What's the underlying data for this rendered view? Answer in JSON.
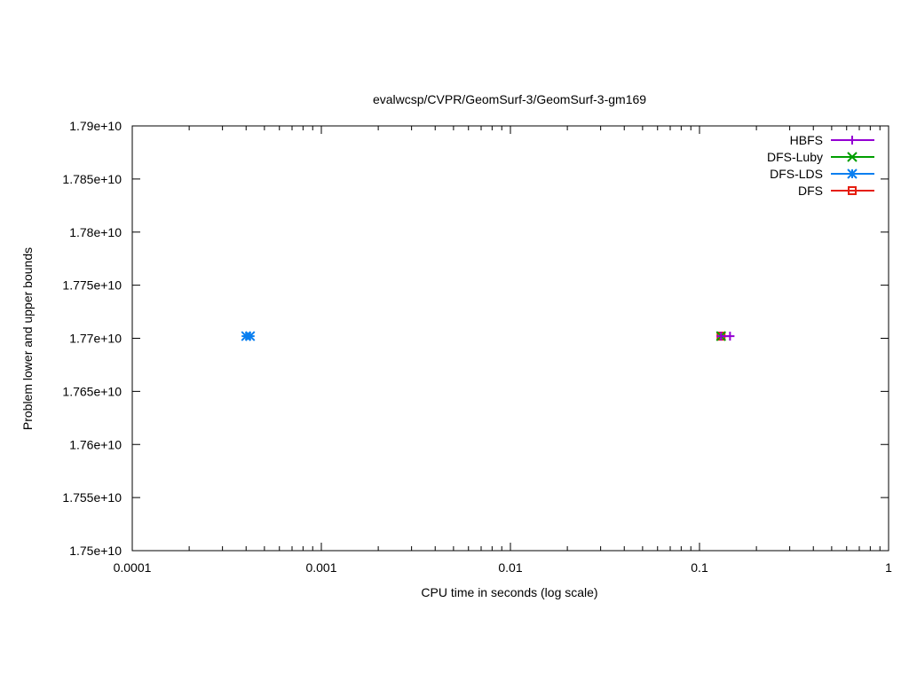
{
  "chart_data": {
    "type": "scatter",
    "title": "evalwcsp/CVPR/GeomSurf-3/GeomSurf-3-gm169",
    "xlabel": "CPU time in seconds (log scale)",
    "ylabel": "Problem lower and upper bounds",
    "x_scale": "log",
    "xlim": [
      0.0001,
      1
    ],
    "ylim": [
      17500000000,
      17900000000
    ],
    "x_ticks": [
      {
        "value": 0.0001,
        "label": "0.0001"
      },
      {
        "value": 0.001,
        "label": "0.001"
      },
      {
        "value": 0.01,
        "label": "0.01"
      },
      {
        "value": 0.1,
        "label": "0.1"
      },
      {
        "value": 1,
        "label": "1"
      }
    ],
    "y_ticks": [
      {
        "value": 17500000000,
        "label": "1.75e+10"
      },
      {
        "value": 17550000000,
        "label": "1.755e+10"
      },
      {
        "value": 17600000000,
        "label": "1.76e+10"
      },
      {
        "value": 17650000000,
        "label": "1.765e+10"
      },
      {
        "value": 17700000000,
        "label": "1.77e+10"
      },
      {
        "value": 17750000000,
        "label": "1.775e+10"
      },
      {
        "value": 17800000000,
        "label": "1.78e+10"
      },
      {
        "value": 17850000000,
        "label": "1.785e+10"
      },
      {
        "value": 17900000000,
        "label": "1.79e+10"
      }
    ],
    "grid": false,
    "legend_position": "top-right",
    "series": [
      {
        "name": "HBFS",
        "color": "#9400d3",
        "marker": "plus",
        "points": [
          {
            "x": 0.13,
            "y": 17702000000
          },
          {
            "x": 0.145,
            "y": 17702000000
          }
        ]
      },
      {
        "name": "DFS-Luby",
        "color": "#009e00",
        "marker": "cross",
        "points": [
          {
            "x": 0.13,
            "y": 17702000000
          }
        ]
      },
      {
        "name": "DFS-LDS",
        "color": "#0a7ff0",
        "marker": "star",
        "points": [
          {
            "x": 0.0004,
            "y": 17702000000
          },
          {
            "x": 0.00042,
            "y": 17702000000
          }
        ]
      },
      {
        "name": "DFS",
        "color": "#e51e10",
        "marker": "square",
        "points": [
          {
            "x": 0.13,
            "y": 17702000000
          }
        ]
      }
    ]
  }
}
